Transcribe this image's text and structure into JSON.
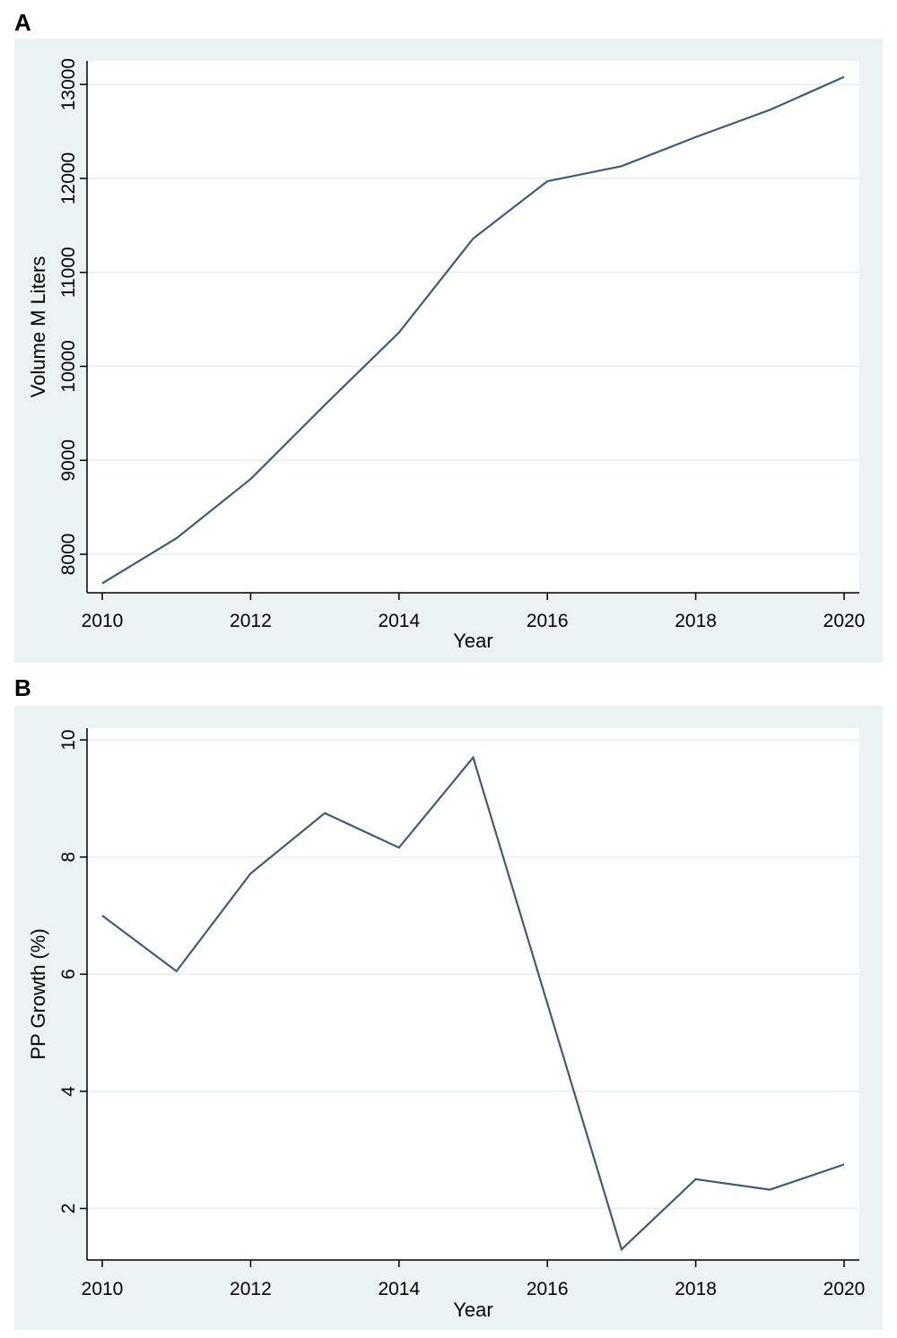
{
  "chart_data": [
    {
      "panel": "A",
      "type": "line",
      "xlabel": "Year",
      "ylabel": "Volume M Liters",
      "xlim": [
        2010,
        2020
      ],
      "ylim": [
        7590,
        13250
      ],
      "xticks": [
        "2010",
        "2012",
        "2014",
        "2016",
        "2018",
        "2020"
      ],
      "yticks": [
        "8000",
        "9000",
        "10000",
        "11000",
        "12000",
        "13000"
      ],
      "grid": true,
      "colors": {
        "background": "#eaf2f3",
        "plot_area": "#ffffff",
        "line": "#3e5c7a",
        "grid": "#e6eef0"
      },
      "x": [
        2010,
        2011,
        2012,
        2013,
        2014,
        2015,
        2016,
        2017,
        2018,
        2019,
        2020
      ],
      "y": [
        7690,
        8170,
        8800,
        9590,
        10360,
        11360,
        11970,
        12130,
        12440,
        12730,
        13080
      ]
    },
    {
      "panel": "B",
      "type": "line",
      "xlabel": "Year",
      "ylabel": "PP Growth (%)",
      "xlim": [
        2010,
        2020
      ],
      "ylim": [
        1.12,
        10.2
      ],
      "xticks": [
        "2010",
        "2012",
        "2014",
        "2016",
        "2018",
        "2020"
      ],
      "yticks": [
        "2",
        "4",
        "6",
        "8",
        "10"
      ],
      "grid": true,
      "colors": {
        "background": "#eaf2f3",
        "plot_area": "#ffffff",
        "line": "#3e5c7a",
        "grid": "#e6eef0"
      },
      "x": [
        2010,
        2011,
        2012,
        2013,
        2014,
        2015,
        2016,
        2017,
        2018,
        2019,
        2020
      ],
      "y": [
        7.0,
        6.05,
        7.72,
        8.75,
        8.16,
        9.7,
        5.5,
        1.3,
        2.5,
        2.32,
        2.75
      ]
    }
  ]
}
